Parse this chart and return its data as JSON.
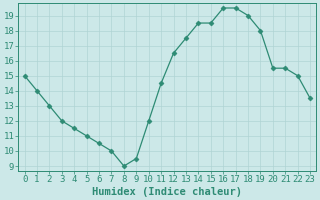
{
  "x": [
    0,
    1,
    2,
    3,
    4,
    5,
    6,
    7,
    8,
    9,
    10,
    11,
    12,
    13,
    14,
    15,
    16,
    17,
    18,
    19,
    20,
    21,
    22,
    23
  ],
  "y": [
    15,
    14,
    13,
    12,
    11.5,
    11,
    10.5,
    10,
    9,
    9.5,
    12,
    14.5,
    16.5,
    17.5,
    18.5,
    18.5,
    19.5,
    19.5,
    19,
    18,
    15.5,
    15.5,
    15,
    13.5
  ],
  "line_color": "#2e8b74",
  "bg_color": "#cce8e8",
  "grid_color": "#b0d4d4",
  "xlabel": "Humidex (Indice chaleur)",
  "ylim_min": 9,
  "ylim_max": 19.5,
  "xlim_min": -0.5,
  "xlim_max": 23.5,
  "yticks": [
    9,
    10,
    11,
    12,
    13,
    14,
    15,
    16,
    17,
    18,
    19
  ],
  "xticks": [
    0,
    1,
    2,
    3,
    4,
    5,
    6,
    7,
    8,
    9,
    10,
    11,
    12,
    13,
    14,
    15,
    16,
    17,
    18,
    19,
    20,
    21,
    22,
    23
  ],
  "tick_fontsize": 6.5,
  "xlabel_fontsize": 7.5,
  "marker_size": 2.5,
  "line_width": 0.9
}
